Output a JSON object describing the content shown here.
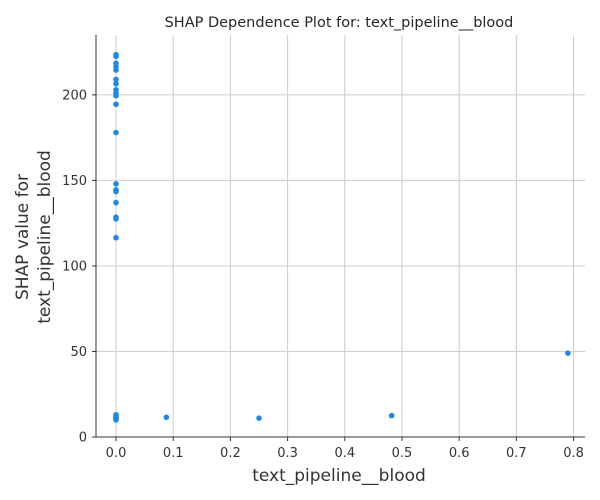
{
  "chart_data": {
    "type": "scatter",
    "title": "SHAP Dependence Plot for: text_pipeline__blood",
    "xlabel": "text_pipeline__blood",
    "ylabel_lines": [
      "SHAP value for",
      "text_pipeline__blood"
    ],
    "xlim": [
      -0.035,
      0.82
    ],
    "ylim": [
      0,
      235
    ],
    "xticks": [
      0.0,
      0.1,
      0.2,
      0.3,
      0.4,
      0.5,
      0.6,
      0.7,
      0.8
    ],
    "xtick_labels": [
      "0.0",
      "0.1",
      "0.2",
      "0.3",
      "0.4",
      "0.5",
      "0.6",
      "0.7",
      "0.8"
    ],
    "yticks": [
      0,
      50,
      100,
      150,
      200
    ],
    "ytick_labels": [
      "0",
      "50",
      "100",
      "150",
      "200"
    ],
    "grid": true,
    "point_color": "#1e88e5",
    "points": [
      {
        "x": 0.0,
        "y": 223.5
      },
      {
        "x": 0.0,
        "y": 222.5
      },
      {
        "x": 0.0,
        "y": 218.5
      },
      {
        "x": 0.0,
        "y": 216.5
      },
      {
        "x": 0.0,
        "y": 214.5
      },
      {
        "x": 0.0,
        "y": 209.0
      },
      {
        "x": 0.0,
        "y": 206.5
      },
      {
        "x": 0.0,
        "y": 203.0
      },
      {
        "x": 0.0,
        "y": 201.0
      },
      {
        "x": 0.0,
        "y": 199.5
      },
      {
        "x": 0.0,
        "y": 194.5
      },
      {
        "x": 0.0,
        "y": 178.0
      },
      {
        "x": 0.0,
        "y": 148.0
      },
      {
        "x": 0.0,
        "y": 144.5
      },
      {
        "x": 0.0,
        "y": 143.5
      },
      {
        "x": 0.0,
        "y": 137.0
      },
      {
        "x": 0.0,
        "y": 128.5
      },
      {
        "x": 0.0,
        "y": 127.5
      },
      {
        "x": 0.0,
        "y": 116.5
      },
      {
        "x": 0.0,
        "y": 13.0
      },
      {
        "x": 0.0,
        "y": 12.0
      },
      {
        "x": 0.0,
        "y": 11.5
      },
      {
        "x": 0.0,
        "y": 11.0
      },
      {
        "x": 0.0,
        "y": 10.5
      },
      {
        "x": 0.0,
        "y": 10.0
      },
      {
        "x": 0.088,
        "y": 11.5
      },
      {
        "x": 0.25,
        "y": 11.0
      },
      {
        "x": 0.482,
        "y": 12.5
      },
      {
        "x": 0.79,
        "y": 49.0
      }
    ]
  }
}
